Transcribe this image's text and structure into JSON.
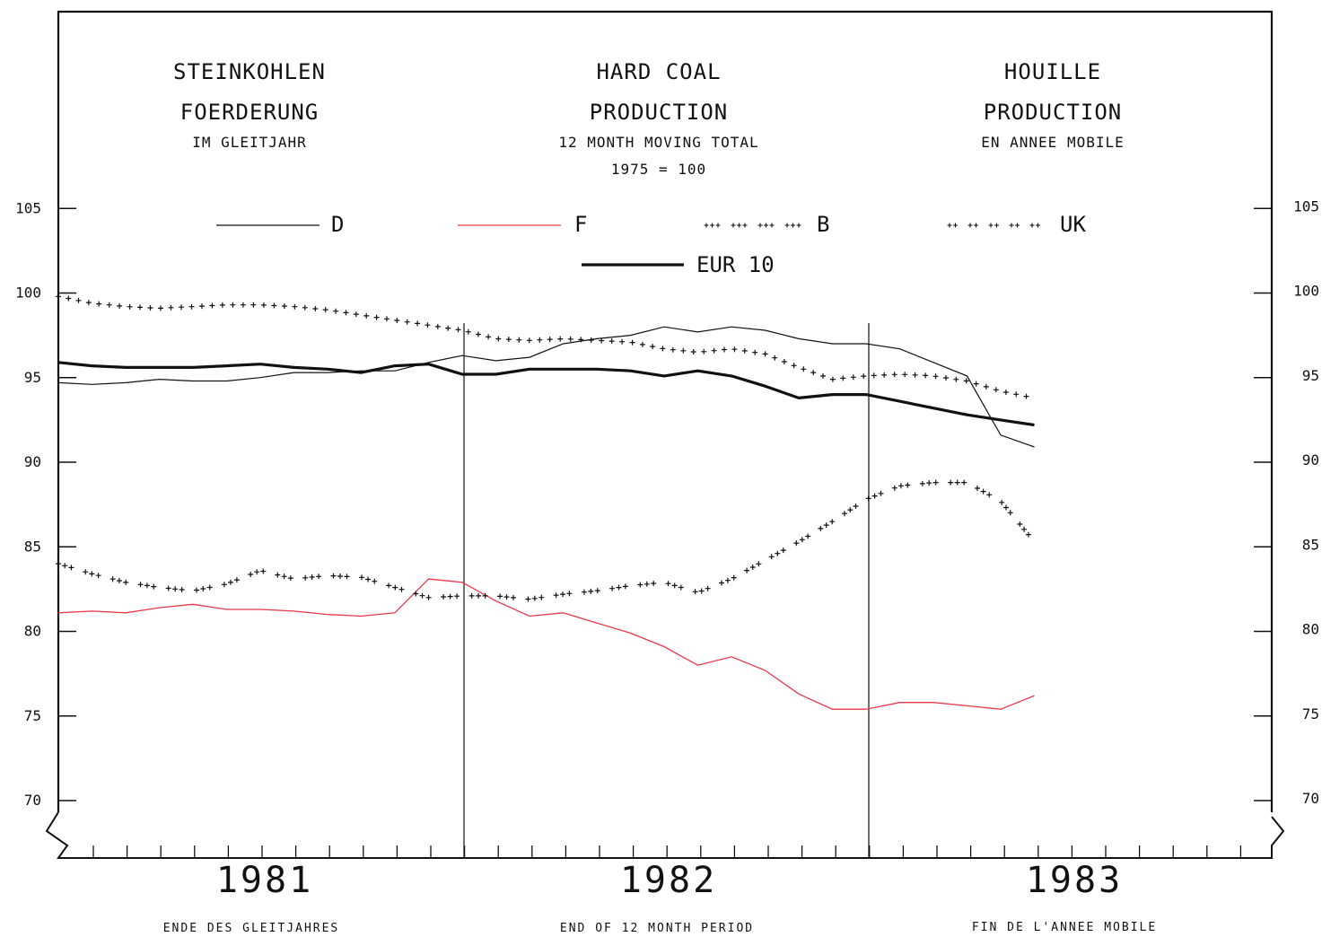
{
  "header": {
    "de": {
      "line1": "STEINKOHLEN",
      "line2": "FOERDERUNG",
      "line3": "IM GLEITJAHR"
    },
    "en": {
      "line1": "HARD COAL",
      "line2": "PRODUCTION",
      "line3": "12 MONTH MOVING TOTAL",
      "line4": "1975 = 100"
    },
    "fr": {
      "line1": "HOUILLE",
      "line2": "PRODUCTION",
      "line3": "EN ANNEE MOBILE"
    }
  },
  "footer": {
    "de": "ENDE DES GLEITJAHRES",
    "en": "END OF 12 MONTH PERIOD",
    "fr": "FIN DE L'ANNEE MOBILE"
  },
  "colors": {
    "F": "#e8384a",
    "ink": "#111111"
  },
  "chart_data": {
    "type": "line",
    "title": "",
    "x_unit": "month",
    "years": [
      "1981",
      "1982",
      "1983"
    ],
    "x": [
      0,
      1,
      2,
      3,
      4,
      5,
      6,
      7,
      8,
      9,
      10,
      11,
      12,
      13,
      14,
      15,
      16,
      17,
      18,
      19,
      20,
      21,
      22,
      23,
      24,
      25,
      26,
      27,
      28,
      29
    ],
    "ylim": [
      70,
      105
    ],
    "yticks": [
      70,
      75,
      80,
      85,
      90,
      95,
      100,
      105
    ],
    "legend_placement": "top",
    "grid": false,
    "series": [
      {
        "name": "D",
        "style": "thin",
        "values": [
          94.7,
          94.6,
          94.7,
          94.9,
          94.8,
          94.8,
          95.0,
          95.3,
          95.3,
          95.4,
          95.4,
          95.9,
          96.3,
          96.0,
          96.2,
          97.0,
          97.3,
          97.5,
          98.0,
          97.7,
          98.0,
          97.8,
          97.3,
          97.0,
          97.0,
          96.7,
          95.9,
          95.1,
          91.6,
          90.9
        ]
      },
      {
        "name": "F",
        "style": "red",
        "values": [
          81.1,
          81.2,
          81.1,
          81.4,
          81.6,
          81.3,
          81.3,
          81.2,
          81.0,
          80.9,
          81.1,
          83.1,
          82.9,
          81.8,
          80.9,
          81.1,
          80.5,
          79.9,
          79.1,
          78.0,
          78.5,
          77.7,
          76.3,
          75.4,
          75.4,
          75.8,
          75.8,
          75.6,
          75.4,
          76.2
        ]
      },
      {
        "name": "B",
        "style": "plus-dense",
        "values": [
          84.0,
          83.4,
          82.9,
          82.6,
          82.4,
          82.8,
          83.6,
          83.1,
          83.3,
          83.2,
          82.6,
          82.0,
          82.1,
          82.1,
          81.9,
          82.2,
          82.4,
          82.7,
          82.9,
          82.3,
          83.1,
          84.2,
          85.3,
          86.5,
          87.8,
          88.6,
          88.8,
          88.8,
          87.7,
          85.3
        ]
      },
      {
        "name": "UK",
        "style": "plus-sparse",
        "values": [
          99.8,
          99.4,
          99.2,
          99.1,
          99.2,
          99.3,
          99.3,
          99.2,
          99.0,
          98.7,
          98.4,
          98.1,
          97.8,
          97.3,
          97.2,
          97.3,
          97.2,
          97.1,
          96.7,
          96.5,
          96.7,
          96.4,
          95.6,
          94.9,
          95.1,
          95.2,
          95.1,
          94.8,
          94.2,
          93.8
        ]
      },
      {
        "name": "EUR 10",
        "style": "thick",
        "values": [
          95.9,
          95.7,
          95.6,
          95.6,
          95.6,
          95.7,
          95.8,
          95.6,
          95.5,
          95.3,
          95.7,
          95.8,
          95.2,
          95.2,
          95.5,
          95.5,
          95.5,
          95.4,
          95.1,
          95.4,
          95.1,
          94.5,
          93.8,
          94.0,
          94.0,
          93.6,
          93.2,
          92.8,
          92.5,
          92.2
        ]
      }
    ]
  }
}
